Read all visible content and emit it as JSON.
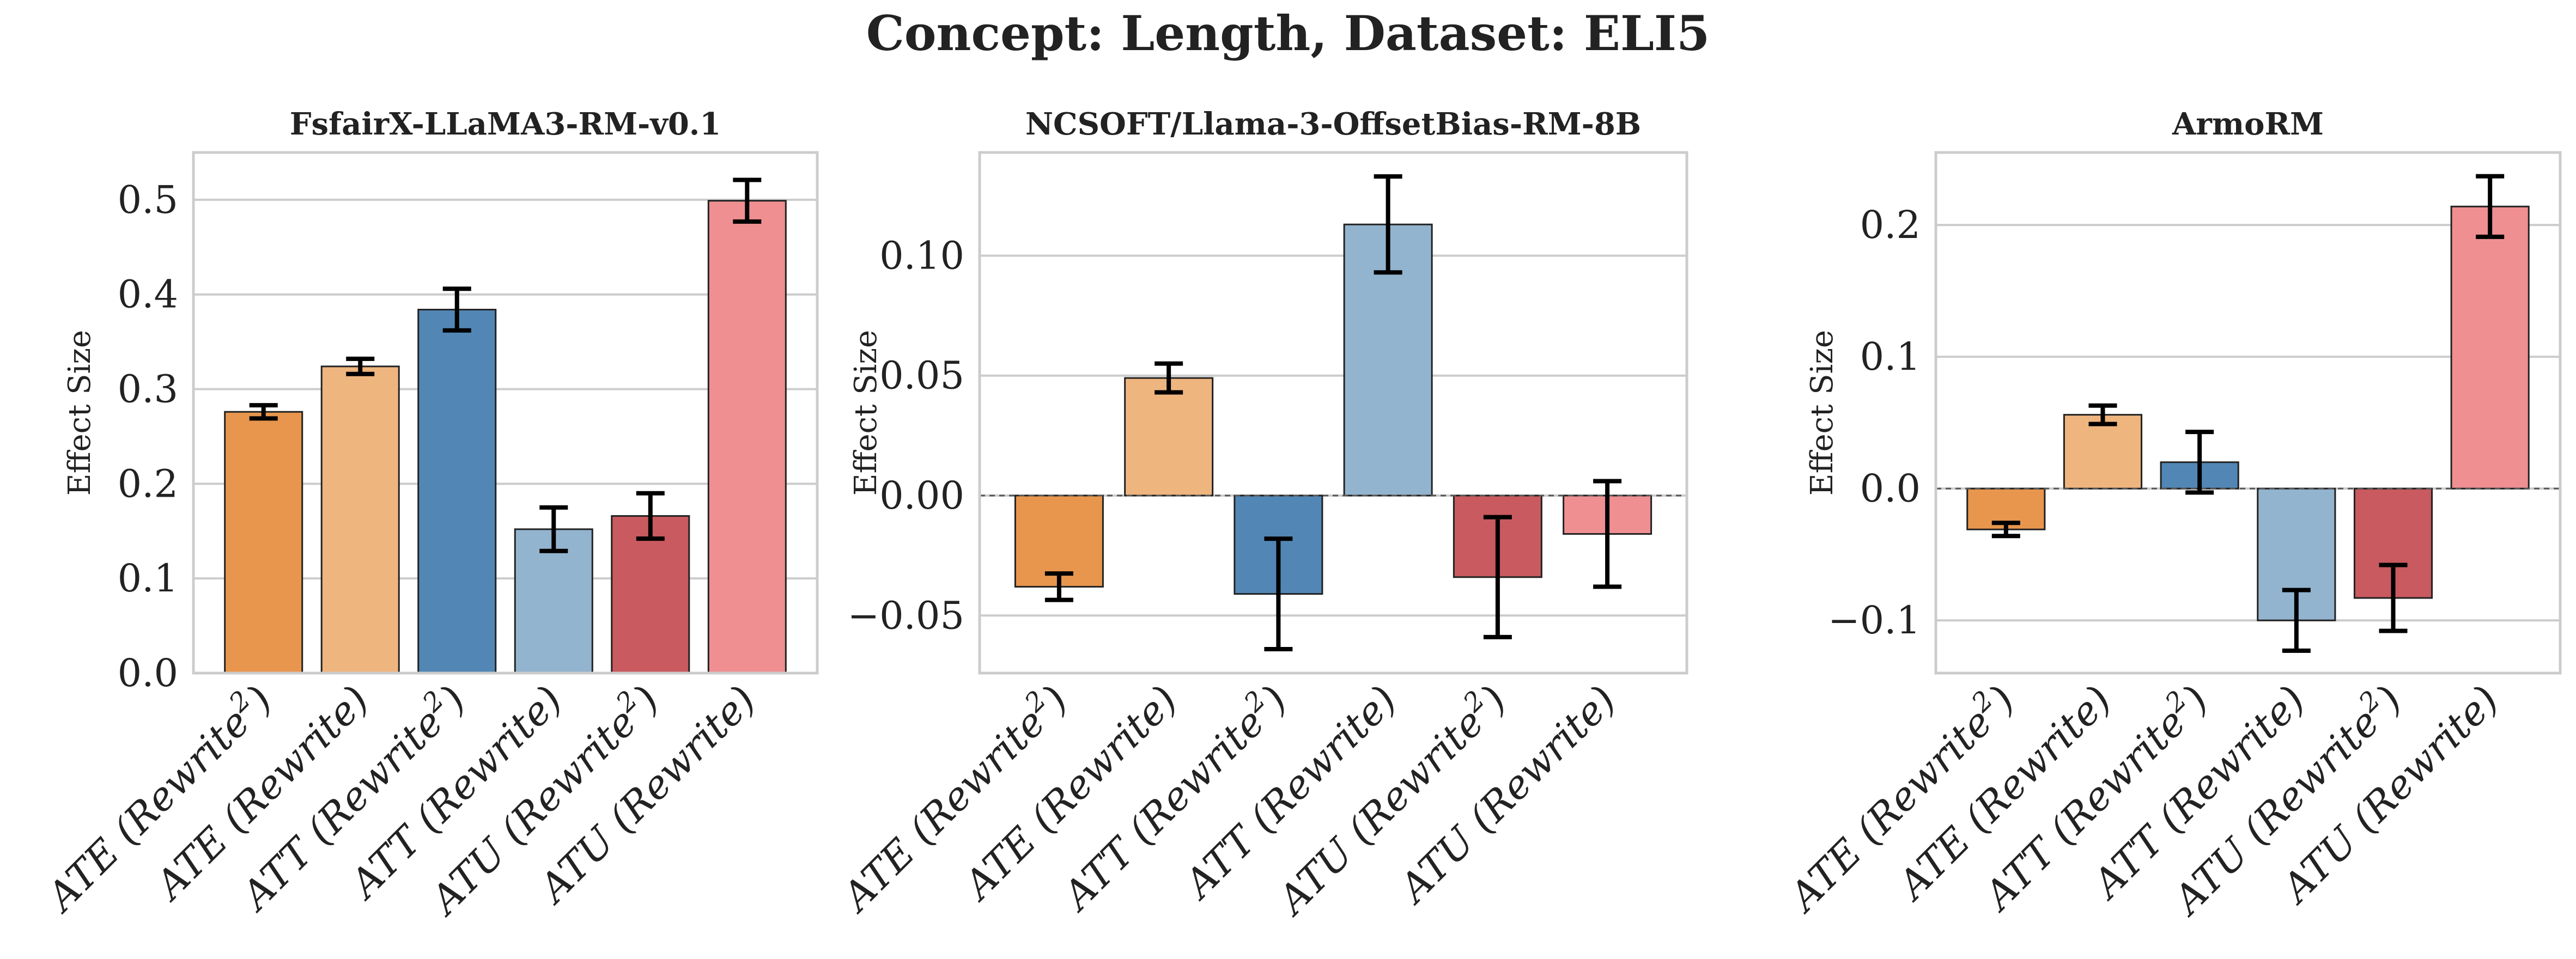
{
  "figure": {
    "title": "Concept: Length, Dataset: ELI5"
  },
  "colors": [
    "#E8964D",
    "#EFB57F",
    "#5287B5",
    "#93B4CF",
    "#C95A5F",
    "#EF8F92"
  ],
  "chart_data": [
    {
      "type": "bar",
      "title": "FsfairX-LLaMA3-RM-v0.1",
      "xlabel": "",
      "ylabel": "Effect Size",
      "categories": [
        {
          "base": "ATE (Rewrite",
          "sup": "2",
          "tail": ")"
        },
        {
          "base": "ATE (Rewrite)",
          "sup": "",
          "tail": ""
        },
        {
          "base": "ATT (Rewrite",
          "sup": "2",
          "tail": ")"
        },
        {
          "base": "ATT (Rewrite)",
          "sup": "",
          "tail": ""
        },
        {
          "base": "ATU (Rewrite",
          "sup": "2",
          "tail": ")"
        },
        {
          "base": "ATU (Rewrite)",
          "sup": "",
          "tail": ""
        }
      ],
      "values": [
        0.276,
        0.324,
        0.384,
        0.152,
        0.166,
        0.499
      ],
      "errors": [
        0.007,
        0.008,
        0.022,
        0.023,
        0.024,
        0.022
      ],
      "ylim": [
        0,
        0.55
      ],
      "yticks": [
        0.0,
        0.1,
        0.2,
        0.3,
        0.4,
        0.5
      ],
      "ytick_labels": [
        "0.0",
        "0.1",
        "0.2",
        "0.3",
        "0.4",
        "0.5"
      ],
      "zero_line": false,
      "grid": true
    },
    {
      "type": "bar",
      "title": "NCSOFT/Llama-3-OffsetBias-RM-8B",
      "xlabel": "",
      "ylabel": "Effect Size",
      "categories": [
        {
          "base": "ATE (Rewrite",
          "sup": "2",
          "tail": ")"
        },
        {
          "base": "ATE (Rewrite)",
          "sup": "",
          "tail": ""
        },
        {
          "base": "ATT (Rewrite",
          "sup": "2",
          "tail": ")"
        },
        {
          "base": "ATT (Rewrite)",
          "sup": "",
          "tail": ""
        },
        {
          "base": "ATU (Rewrite",
          "sup": "2",
          "tail": ")"
        },
        {
          "base": "ATU (Rewrite)",
          "sup": "",
          "tail": ""
        }
      ],
      "values": [
        -0.038,
        0.049,
        -0.041,
        0.113,
        -0.034,
        -0.016
      ],
      "errors": [
        0.0055,
        0.006,
        0.023,
        0.02,
        0.025,
        0.022
      ],
      "ylim": [
        -0.074,
        0.143
      ],
      "yticks": [
        -0.05,
        0.0,
        0.05,
        0.1
      ],
      "ytick_labels": [
        "−0.05",
        "0.00",
        "0.05",
        "0.10"
      ],
      "zero_line": true,
      "grid": true
    },
    {
      "type": "bar",
      "title": "ArmoRM",
      "xlabel": "",
      "ylabel": "Effect Size",
      "categories": [
        {
          "base": "ATE (Rewrite",
          "sup": "2",
          "tail": ")"
        },
        {
          "base": "ATE (Rewrite)",
          "sup": "",
          "tail": ""
        },
        {
          "base": "ATT (Rewrite",
          "sup": "2",
          "tail": ")"
        },
        {
          "base": "ATT (Rewrite)",
          "sup": "",
          "tail": ""
        },
        {
          "base": "ATU (Rewrite",
          "sup": "2",
          "tail": ")"
        },
        {
          "base": "ATU (Rewrite)",
          "sup": "",
          "tail": ""
        }
      ],
      "values": [
        -0.031,
        0.056,
        0.02,
        -0.1,
        -0.083,
        0.214
      ],
      "errors": [
        0.005,
        0.007,
        0.023,
        0.023,
        0.025,
        0.023
      ],
      "ylim": [
        -0.14,
        0.255
      ],
      "yticks": [
        -0.1,
        0.0,
        0.1,
        0.2
      ],
      "ytick_labels": [
        "−0.1",
        "0.0",
        "0.1",
        "0.2"
      ],
      "zero_line": true,
      "grid": true
    }
  ]
}
